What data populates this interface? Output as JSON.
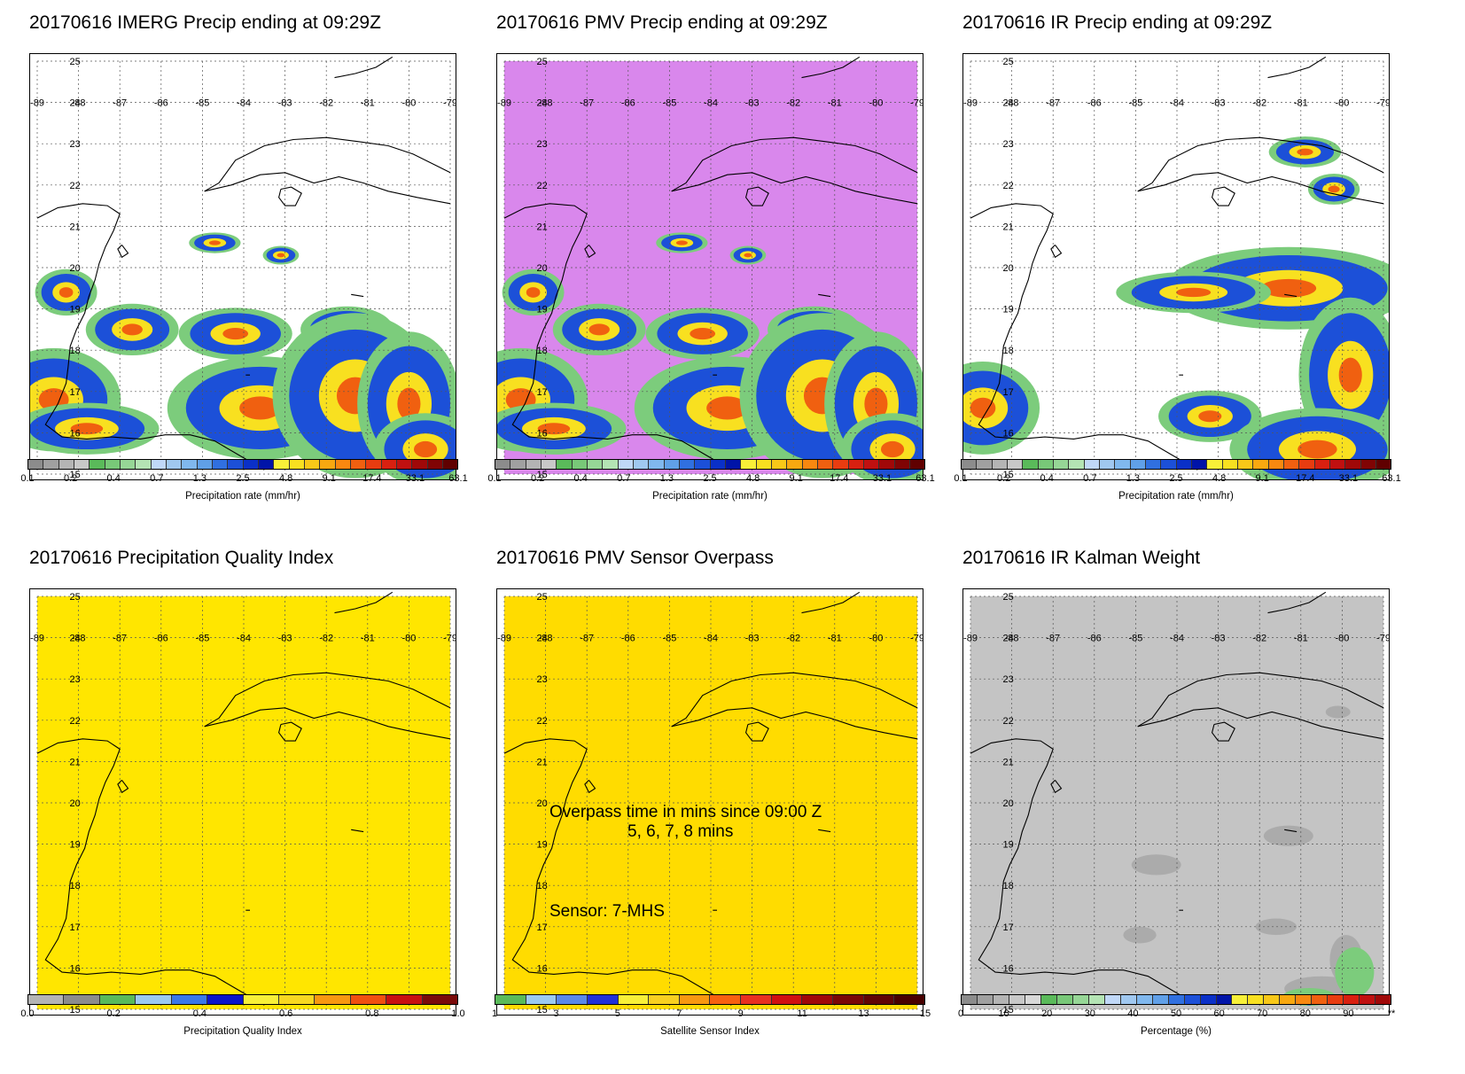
{
  "lon_ticks": [
    "-89",
    "-88",
    "-87",
    "-86",
    "-85",
    "-84",
    "-83",
    "-82",
    "-81",
    "-80",
    "-79"
  ],
  "lat_ticks": [
    "25",
    "24",
    "23",
    "22",
    "21",
    "20",
    "19",
    "18",
    "17",
    "16",
    "15"
  ],
  "panels": [
    {
      "title": "20170616 IMERG Precip ending at 09:29Z",
      "type": "precip",
      "colorbar": {
        "label": "Precipitation rate (mm/hr)",
        "ticks": [
          "0.1",
          "0.2",
          "0.4",
          "0.7",
          "1.3",
          "2.5",
          "4.8",
          "9.1",
          "17.4",
          "33.1",
          "63.1"
        ],
        "colors": [
          "#8c8c8c",
          "#a0a0a0",
          "#b4b4b4",
          "#c8c8c8",
          "#5aba5a",
          "#78c878",
          "#96d696",
          "#b4e4b4",
          "#c0d8f8",
          "#a0c8f0",
          "#80b8ee",
          "#60a0e8",
          "#3070e0",
          "#1c50d8",
          "#0a30c8",
          "#0014a8",
          "#f8f038",
          "#f8e020",
          "#f8c818",
          "#f8a810",
          "#f88810",
          "#f06010",
          "#e83c10",
          "#d82010",
          "#c01010",
          "#a00808",
          "#800404",
          "#600000"
        ]
      },
      "fill": "#ffffff"
    },
    {
      "title": "20170616 PMV Precip ending at 09:29Z",
      "type": "precip",
      "colorbar": {
        "label": "Precipitation rate (mm/hr)",
        "ticks": [
          "0.1",
          "0.2",
          "0.4",
          "0.7",
          "1.3",
          "2.5",
          "4.8",
          "9.1",
          "17.4",
          "33.1",
          "63.1"
        ],
        "colors": [
          "#8c8c8c",
          "#a0a0a0",
          "#b4b4b4",
          "#c8c8c8",
          "#5aba5a",
          "#78c878",
          "#96d696",
          "#b4e4b4",
          "#c0d8f8",
          "#a0c8f0",
          "#80b8ee",
          "#60a0e8",
          "#3070e0",
          "#1c50d8",
          "#0a30c8",
          "#0014a8",
          "#f8f038",
          "#f8e020",
          "#f8c818",
          "#f8a810",
          "#f88810",
          "#f06010",
          "#e83c10",
          "#d82010",
          "#c01010",
          "#a00808",
          "#800404",
          "#600000"
        ]
      },
      "fill": "#d987ec"
    },
    {
      "title": "20170616 IR Precip ending at 09:29Z",
      "type": "precip",
      "colorbar": {
        "label": "Precipitation rate (mm/hr)",
        "ticks": [
          "0.1",
          "0.2",
          "0.4",
          "0.7",
          "1.3",
          "2.5",
          "4.8",
          "9.1",
          "17.4",
          "33.1",
          "63.1"
        ],
        "colors": [
          "#8c8c8c",
          "#a0a0a0",
          "#b4b4b4",
          "#c8c8c8",
          "#5aba5a",
          "#78c878",
          "#96d696",
          "#b4e4b4",
          "#c0d8f8",
          "#a0c8f0",
          "#80b8ee",
          "#60a0e8",
          "#3070e0",
          "#1c50d8",
          "#0a30c8",
          "#0014a8",
          "#f8f038",
          "#f8e020",
          "#f8c818",
          "#f8a810",
          "#f88810",
          "#f06010",
          "#e83c10",
          "#d82010",
          "#c01010",
          "#a00808",
          "#800404",
          "#600000"
        ]
      },
      "fill": "#ffffff"
    },
    {
      "title": "20170616 Precipitation Quality Index",
      "type": "quality",
      "colorbar": {
        "label": "Precipitation Quality Index",
        "ticks": [
          "0.0",
          "0.2",
          "0.4",
          "0.6",
          "0.8",
          "1.0"
        ],
        "colors": [
          "#b4b4b4",
          "#8c8c8c",
          "#5aba5a",
          "#9ccaf0",
          "#3a78e8",
          "#0a14c8",
          "#f8f038",
          "#f8d820",
          "#f89810",
          "#f05010",
          "#c81010",
          "#7a0a0a"
        ]
      },
      "fill": "#ffe600"
    },
    {
      "title": "20170616 PMV Sensor Overpass",
      "type": "sensor",
      "colorbar": {
        "label": "Satellite Sensor Index",
        "ticks": [
          "1",
          "3",
          "5",
          "7",
          "9",
          "11",
          "13",
          "15"
        ],
        "colors": [
          "#5aba5a",
          "#9ccaf0",
          "#5a88e8",
          "#2030d8",
          "#f8f038",
          "#f8d020",
          "#f89810",
          "#f86010",
          "#e83020",
          "#d01010",
          "#a00808",
          "#7a0606",
          "#600404",
          "#480000"
        ]
      },
      "fill": "#ffdc00",
      "annotation": {
        "line1": "Overpass time in mins since 09:00 Z",
        "line2": "5, 6, 7, 8 mins",
        "sensor": "Sensor:   7-MHS"
      }
    },
    {
      "title": "20170616 IR Kalman Weight",
      "type": "kalman",
      "colorbar": {
        "label": "Percentage (%)",
        "ticks": [
          "0",
          "10",
          "20",
          "30",
          "40",
          "50",
          "60",
          "70",
          "80",
          "90",
          "**"
        ],
        "colors": [
          "#8c8c8c",
          "#a0a0a0",
          "#b4b4b4",
          "#c8c8c8",
          "#d8d8d8",
          "#5aba5a",
          "#78c878",
          "#96d696",
          "#b4e4b4",
          "#c0d8f8",
          "#a0c8f0",
          "#80b8ee",
          "#60a0e8",
          "#3070e0",
          "#1c50d8",
          "#0a30c8",
          "#0014a8",
          "#f8f038",
          "#f8e020",
          "#f8c818",
          "#f8a810",
          "#f88810",
          "#f06010",
          "#e83c10",
          "#d82010",
          "#c01010",
          "#a00808"
        ]
      },
      "fill": "#c4c4c4"
    }
  ]
}
